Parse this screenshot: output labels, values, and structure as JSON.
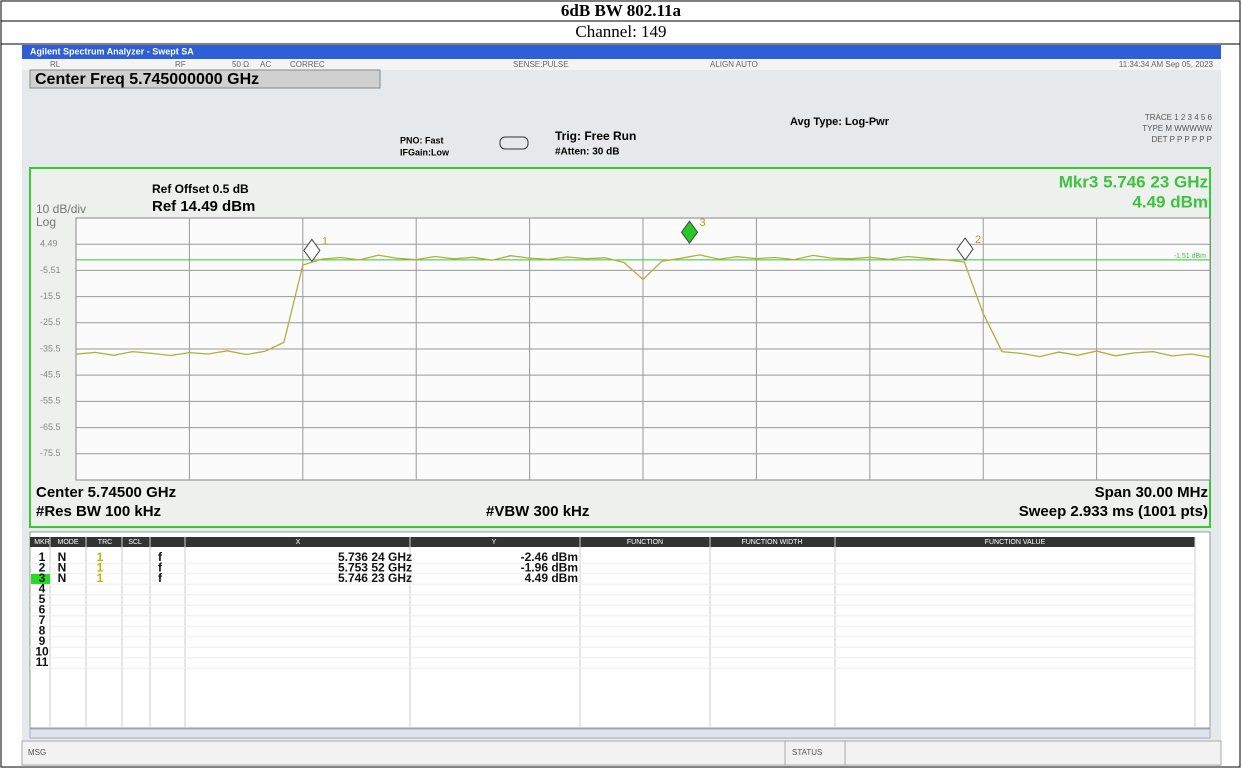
{
  "header": {
    "title": "6dB BW 802.11a",
    "subtitle": "Channel: 149"
  },
  "screen": {
    "window_title": "Agilent Spectrum Analyzer - Swept SA",
    "status": [
      "RL",
      "RF",
      "50 Ω",
      "AC",
      "CORREC",
      "SENSE:PULSE",
      "ALIGN AUTO",
      "11:34:34 AM Sep 05, 2023"
    ],
    "center_freq": "Center Freq 5.745000000 GHz",
    "pno": "PNO: Fast",
    "ifgain": "IFGain:Low",
    "trig": "Trig: Free Run",
    "atten": "#Atten: 30 dB",
    "avg_type": "Avg Type: Log-Pwr",
    "trace_info": [
      "TRACE 1 2 3 4 5 6",
      "TYPE M WWWWW",
      "DET P P P P P P"
    ],
    "msg": "MSG",
    "status_label": "STATUS"
  },
  "chart_data": {
    "type": "line",
    "scale": "10 dB/div",
    "scale_type": "Log",
    "ref_offset": "Ref Offset 0.5 dB",
    "ref_level": "Ref 14.49 dBm",
    "marker_readout": "Mkr3 5.746 23 GHz",
    "marker_readout_value": "4.49 dBm",
    "bottom_left": "Center 5.74500 GHz",
    "res_bw": "#Res BW 100 kHz",
    "vbw": "#VBW 300 kHz",
    "span": "Span 30.00 MHz",
    "sweep": "Sweep 2.933 ms (1001 pts)",
    "xlim": [
      5.73,
      5.76
    ],
    "ylim": [
      -85.51,
      14.49
    ],
    "yticks": [
      4.49,
      -5.51,
      -15.5,
      -25.5,
      -35.5,
      -45.5,
      -55.5,
      -65.5,
      -75.5
    ],
    "grid": true,
    "color": "#b0b03c",
    "display_line": {
      "value": -1.51,
      "label": "-1.51 dBm"
    },
    "values": [
      -37.5,
      -36.8,
      -37.9,
      -36.5,
      -37.2,
      -38,
      -36.9,
      -37.4,
      -36.2,
      -37.6,
      -36.4,
      -33,
      -3.5,
      -1.2,
      -0.6,
      -1.5,
      0.3,
      -0.9,
      -1.4,
      -0.2,
      -1.1,
      -0.5,
      -1.6,
      0.1,
      -0.8,
      -1.3,
      -0.4,
      -1.0,
      -0.7,
      -2.5,
      -9.0,
      -2.0,
      -0.9,
      0.4,
      -1.2,
      -0.3,
      -1.0,
      -0.6,
      -1.4,
      0.2,
      -0.8,
      -1.1,
      -0.5,
      -1.3,
      -0.2,
      -0.9,
      -1.5,
      -2.3,
      -22,
      -36.5,
      -37.2,
      -38.4,
      -36.7,
      -37.9,
      -36.3,
      -38.1,
      -37.0,
      -36.5,
      -38.2,
      -37.4,
      -38.6
    ],
    "markers": [
      {
        "label": "1",
        "x": 5.73624,
        "y": -2.46
      },
      {
        "label": "2",
        "x": 5.75352,
        "y": -1.96
      },
      {
        "label": "3",
        "x": 5.74623,
        "y": 4.49
      }
    ]
  },
  "table": {
    "columns": [
      "MKR",
      "MODE",
      "TRC",
      "SCL",
      "X",
      "Y",
      "FUNCTION",
      "FUNCTION WIDTH",
      "FUNCTION VALUE"
    ],
    "rows": [
      [
        "1",
        "N",
        "1",
        "f",
        "5.736 24 GHz",
        "-2.46 dBm"
      ],
      [
        "2",
        "N",
        "1",
        "f",
        "5.753 52 GHz",
        "-1.96 dBm"
      ],
      [
        "3",
        "N",
        "1",
        "f",
        "5.746 23 GHz",
        "4.49 dBm"
      ],
      [
        "4"
      ],
      [
        "5"
      ],
      [
        "6"
      ],
      [
        "7"
      ],
      [
        "8"
      ],
      [
        "9"
      ],
      [
        "10"
      ],
      [
        "11"
      ]
    ]
  }
}
